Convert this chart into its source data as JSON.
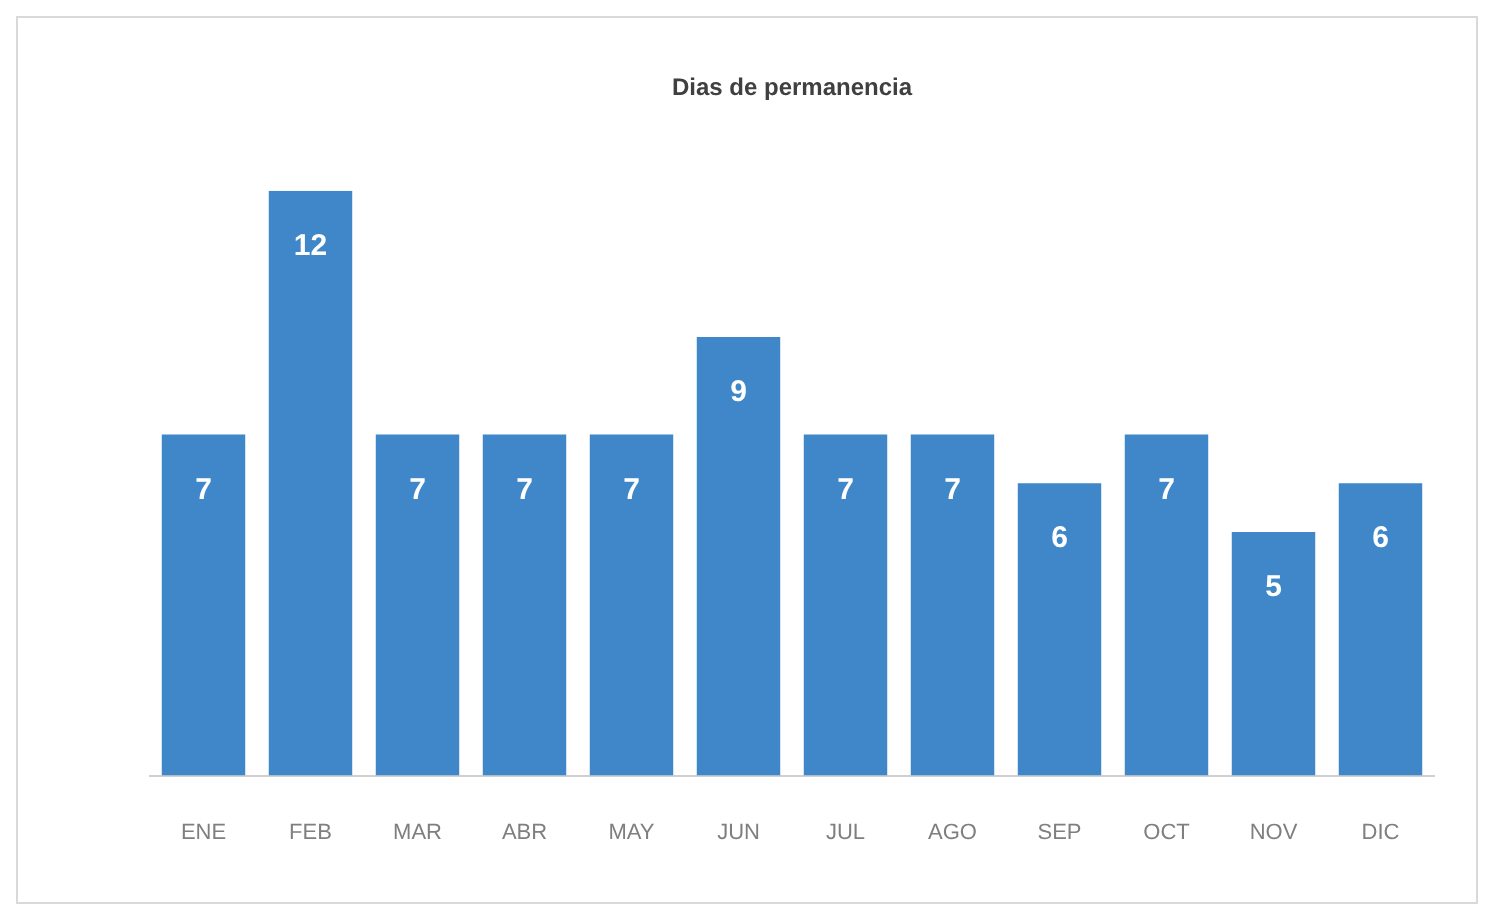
{
  "chart_data": {
    "type": "bar",
    "title": "Dias de permanencia",
    "categories": [
      "ENE",
      "FEB",
      "MAR",
      "ABR",
      "MAY",
      "JUN",
      "JUL",
      "AGO",
      "SEP",
      "OCT",
      "NOV",
      "DIC"
    ],
    "values": [
      7,
      12,
      7,
      7,
      7,
      9,
      7,
      7,
      6,
      7,
      5,
      6
    ],
    "color": "#3f87c8",
    "data_labels": true,
    "grid": false,
    "legend": false,
    "tick_labels": "x"
  }
}
